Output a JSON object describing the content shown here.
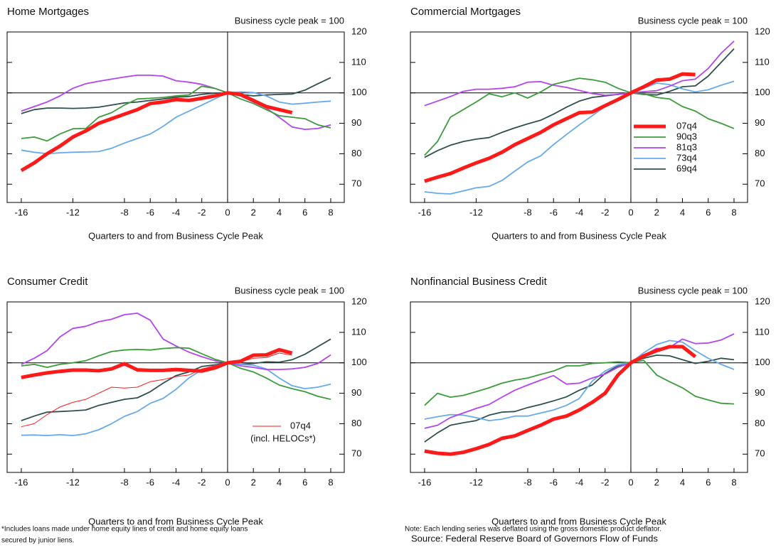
{
  "chart_data": [
    {
      "type": "line",
      "title": "Home Mortgages",
      "subtitle": "Business cycle peak = 100",
      "x_label": "Quarters to and from Business Cycle Peak",
      "x": [
        -16,
        -15,
        -14,
        -13,
        -12,
        -11,
        -10,
        -9,
        -8,
        -7,
        -6,
        -5,
        -4,
        -3,
        -2,
        -1,
        0,
        1,
        2,
        3,
        4,
        5,
        6,
        7,
        8
      ],
      "xlim": [
        -17.1,
        9.05
      ],
      "xticks": [
        -16,
        -12,
        -8,
        -6,
        -4,
        -2,
        0,
        2,
        4,
        6,
        8
      ],
      "ylim": [
        64,
        120
      ],
      "yticks": [
        70,
        80,
        90,
        100,
        110,
        120
      ],
      "hline": 100,
      "vline": 0,
      "series": [
        {
          "color": "#2f4f4f",
          "width": 1.8,
          "values": [
            93.2,
            94.5,
            95,
            95,
            94.9,
            95,
            95.3,
            96,
            96.7,
            97,
            97.5,
            98,
            98.6,
            98.8,
            99.5,
            99.9,
            100,
            99.5,
            99,
            99.3,
            99.5,
            99.6,
            100.9,
            103,
            105
          ]
        },
        {
          "color": "#66aaee",
          "width": 1.8,
          "values": [
            81.2,
            80.5,
            80,
            80.3,
            80.5,
            80.6,
            80.7,
            81.8,
            83.5,
            85,
            86.5,
            89,
            92,
            94,
            96,
            98,
            100,
            100.3,
            100.1,
            99,
            97,
            96.3,
            96.6,
            97,
            97.3
          ]
        },
        {
          "color": "#b344f2",
          "width": 1.8,
          "values": [
            94,
            95.5,
            97,
            99,
            101.5,
            103,
            103.8,
            104.5,
            105.2,
            105.8,
            105.8,
            105.5,
            104,
            103.5,
            102.8,
            101.5,
            100,
            99,
            97,
            95,
            92,
            88.8,
            88,
            88.3,
            89.5
          ]
        },
        {
          "color": "#3c9c3c",
          "width": 1.8,
          "values": [
            85,
            85.5,
            84.2,
            86.5,
            88.2,
            88.3,
            92,
            93.5,
            96,
            98,
            98.2,
            98.5,
            99,
            99.3,
            102.2,
            101.5,
            100,
            98,
            96.5,
            94.5,
            92.5,
            92,
            91.5,
            89.5,
            88.5
          ]
        },
        {
          "color": "#ff1a1a",
          "width": 5,
          "values": [
            74.5,
            77,
            80,
            82.5,
            85.5,
            87.5,
            90,
            91.5,
            93,
            94.5,
            96.5,
            97,
            97.8,
            97.5,
            98.2,
            99,
            100,
            99.5,
            97.5,
            95.5,
            94.5,
            93.5,
            null,
            null,
            null
          ]
        }
      ]
    },
    {
      "type": "line",
      "title": "Commercial Mortgages",
      "subtitle": "Business cycle peak = 100",
      "x_label": "Quarters to and from Business Cycle Peak",
      "x": [
        -16,
        -15,
        -14,
        -13,
        -12,
        -11,
        -10,
        -9,
        -8,
        -7,
        -6,
        -5,
        -4,
        -3,
        -2,
        -1,
        0,
        1,
        2,
        3,
        4,
        5,
        6,
        7,
        8
      ],
      "xlim": [
        -17.1,
        9.05
      ],
      "xticks": [
        -16,
        -12,
        -8,
        -6,
        -4,
        -2,
        0,
        2,
        4,
        6,
        8
      ],
      "ylim": [
        64,
        120
      ],
      "yticks": [
        70,
        80,
        90,
        100,
        110,
        120
      ],
      "hline": 100,
      "vline": 0,
      "legend": "right",
      "series": [
        {
          "name": "69q4",
          "color": "#2f4f4f",
          "width": 1.8,
          "values": [
            78.8,
            81,
            82.8,
            84,
            84.8,
            85.3,
            87,
            88.5,
            89.8,
            91,
            93,
            95.3,
            97.3,
            98.5,
            99,
            99.5,
            100,
            99.5,
            99.3,
            100.5,
            102,
            102.3,
            105.5,
            110,
            114.5
          ]
        },
        {
          "name": "73q4",
          "color": "#66aaee",
          "width": 1.8,
          "values": [
            67.5,
            67,
            66.8,
            67.8,
            68.8,
            69.3,
            71.2,
            74.3,
            77.3,
            79.3,
            83,
            86.3,
            89.5,
            92.5,
            95.5,
            98,
            100,
            101.5,
            103.2,
            102.7,
            101.3,
            100.3,
            101,
            102.5,
            103.8
          ]
        },
        {
          "name": "81q3",
          "color": "#b344f2",
          "width": 1.8,
          "values": [
            95.8,
            97.3,
            98.8,
            100.5,
            101.2,
            101.2,
            101.5,
            102,
            103.5,
            103.7,
            102.5,
            101.8,
            100.8,
            99.8,
            99.2,
            99.5,
            100,
            100.4,
            100.7,
            102.2,
            104,
            104.5,
            108,
            113,
            117
          ]
        },
        {
          "name": "90q3",
          "color": "#3c9c3c",
          "width": 1.8,
          "values": [
            79.5,
            84,
            92,
            94.5,
            97,
            99.7,
            98.7,
            100,
            98.3,
            100.3,
            102.8,
            103.8,
            104.8,
            104.3,
            103.5,
            101.5,
            100,
            99.7,
            98.5,
            98,
            95.5,
            94,
            91.5,
            90,
            88.3
          ]
        },
        {
          "name": "07q4",
          "color": "#ff1a1a",
          "width": 5,
          "values": [
            71,
            72.3,
            73.5,
            75.3,
            77,
            78.5,
            80.5,
            83,
            85,
            87,
            89.5,
            91.5,
            93.5,
            93.7,
            95.8,
            97.8,
            100,
            102,
            104.2,
            104.5,
            106.2,
            106,
            null,
            null,
            null
          ]
        }
      ]
    },
    {
      "type": "line",
      "title": "Consumer Credit",
      "subtitle": "Business cycle peak = 100",
      "x_label": "Quarters to and from Business Cycle Peak",
      "footnote": [
        "*Includes loans made under home equity lines of credit and home equity loans",
        "secured by junior liens."
      ],
      "x": [
        -16,
        -15,
        -14,
        -13,
        -12,
        -11,
        -10,
        -9,
        -8,
        -7,
        -6,
        -5,
        -4,
        -3,
        -2,
        -1,
        0,
        1,
        2,
        3,
        4,
        5,
        6,
        7,
        8
      ],
      "xlim": [
        -17.1,
        9.05
      ],
      "xticks": [
        -16,
        -12,
        -8,
        -6,
        -4,
        -2,
        0,
        2,
        4,
        6,
        8
      ],
      "ylim": [
        64,
        120
      ],
      "yticks": [
        70,
        80,
        90,
        100,
        110,
        120
      ],
      "hline": 100,
      "vline": 0,
      "series": [
        {
          "color": "#2f4f4f",
          "width": 1.8,
          "values": [
            81,
            82.5,
            83.8,
            84,
            84.2,
            84.5,
            86,
            87,
            88,
            88.5,
            90.5,
            93.3,
            95.8,
            97,
            98.8,
            99.3,
            100,
            99.5,
            99.8,
            100.3,
            100.2,
            101,
            102.8,
            105.3,
            107.8
          ]
        },
        {
          "color": "#66aaee",
          "width": 1.8,
          "values": [
            76.2,
            76.3,
            76.1,
            76.4,
            76.1,
            76.7,
            78,
            80,
            82.4,
            84,
            86.7,
            88.3,
            91.3,
            95,
            97.7,
            99,
            100,
            99.5,
            99.2,
            98,
            95,
            92.5,
            91.5,
            92,
            93
          ]
        },
        {
          "color": "#b344f2",
          "width": 1.8,
          "values": [
            99.5,
            101.5,
            104,
            108.5,
            111.3,
            112,
            113.5,
            114.3,
            115.8,
            116.3,
            114,
            107.8,
            105.5,
            103.5,
            102,
            100.7,
            100,
            99,
            98.5,
            97.8,
            97.8,
            98,
            98.5,
            99.8,
            102.6
          ]
        },
        {
          "color": "#3c9c3c",
          "width": 1.8,
          "values": [
            99,
            99.5,
            98.5,
            99.5,
            100,
            100.7,
            102.3,
            103.7,
            104.2,
            104.4,
            104.2,
            104.7,
            105,
            104.8,
            103,
            101.2,
            100,
            98.2,
            97,
            95,
            92.7,
            91.5,
            90.5,
            89,
            88
          ]
        },
        {
          "name": "07q4",
          "note": "(incl. HELOCs*)",
          "color": "#ff1a1a",
          "width": 1,
          "values": [
            79,
            80,
            83,
            85.5,
            87,
            88,
            90,
            92,
            91.7,
            92,
            93.8,
            94.5,
            95.5,
            96,
            98,
            99,
            100,
            100.3,
            101.5,
            101.7,
            103.2,
            102.5,
            null,
            null,
            null
          ]
        },
        {
          "color": "#ff1a1a",
          "width": 5,
          "values": [
            95.2,
            96,
            96.7,
            97.2,
            97.6,
            97.6,
            97.4,
            98,
            99.7,
            97.7,
            97.5,
            97.5,
            97.8,
            97.5,
            97.3,
            98.3,
            100,
            100.5,
            102.5,
            102.6,
            104.3,
            103.2,
            null,
            null,
            null
          ]
        }
      ]
    },
    {
      "type": "line",
      "title": "Nonfinancial Business Credit",
      "subtitle": "Business cycle peak = 100",
      "x_label": "Quarters to and from Business Cycle Peak",
      "footnote": [
        "Note: Each lending series was deflated using the gross domestic product deflator."
      ],
      "x": [
        -16,
        -15,
        -14,
        -13,
        -12,
        -11,
        -10,
        -9,
        -8,
        -7,
        -6,
        -5,
        -4,
        -3,
        -2,
        -1,
        0,
        1,
        2,
        3,
        4,
        5,
        6,
        7,
        8
      ],
      "xlim": [
        -17.1,
        9.05
      ],
      "xticks": [
        -16,
        -12,
        -8,
        -6,
        -4,
        -2,
        0,
        2,
        4,
        6,
        8
      ],
      "ylim": [
        64,
        120
      ],
      "yticks": [
        70,
        80,
        90,
        100,
        110,
        120
      ],
      "hline": 100,
      "vline": 0,
      "series": [
        {
          "color": "#2f4f4f",
          "width": 1.8,
          "values": [
            74,
            77,
            79.5,
            80.3,
            81,
            82.8,
            83.8,
            84,
            85.3,
            86.3,
            87.5,
            88.8,
            91,
            92.7,
            96.5,
            99,
            100,
            101.5,
            102.5,
            102.3,
            101,
            99.8,
            100.5,
            101.5,
            101
          ]
        },
        {
          "color": "#66aaee",
          "width": 1.8,
          "values": [
            81.5,
            82.3,
            83,
            82.8,
            82,
            81,
            81.5,
            82.5,
            82.5,
            83.5,
            84.5,
            86,
            88.3,
            94,
            97.3,
            99.3,
            100,
            103.3,
            106,
            107.3,
            106.8,
            104,
            101.5,
            99.5,
            97.8
          ]
        },
        {
          "color": "#b344f2",
          "width": 1.8,
          "values": [
            78.5,
            79.5,
            82,
            83.5,
            85,
            86.3,
            88.7,
            91,
            92.7,
            94.3,
            95.8,
            93,
            93.3,
            95,
            96.3,
            98.5,
            100,
            102.5,
            104.7,
            105,
            107.8,
            106.3,
            106.5,
            107.5,
            109.5
          ]
        },
        {
          "color": "#3c9c3c",
          "width": 1.8,
          "values": [
            86,
            90,
            88.7,
            89.3,
            90.5,
            91.8,
            93.3,
            94.3,
            95,
            96.2,
            97.3,
            99,
            99,
            99.8,
            100,
            100.3,
            100,
            100.8,
            96,
            93.8,
            91.8,
            89,
            87.8,
            86.7,
            86.5
          ]
        },
        {
          "color": "#ff1a1a",
          "width": 5,
          "values": [
            71,
            70.3,
            70,
            70.6,
            71.8,
            73.2,
            75.2,
            76,
            77.8,
            79.5,
            81.5,
            82.5,
            84.5,
            87,
            90,
            96,
            100,
            102.3,
            104,
            105.3,
            105.3,
            102,
            null,
            null,
            null
          ]
        }
      ]
    }
  ],
  "source": "Source: Federal Reserve Board of Governors Flow of Funds"
}
